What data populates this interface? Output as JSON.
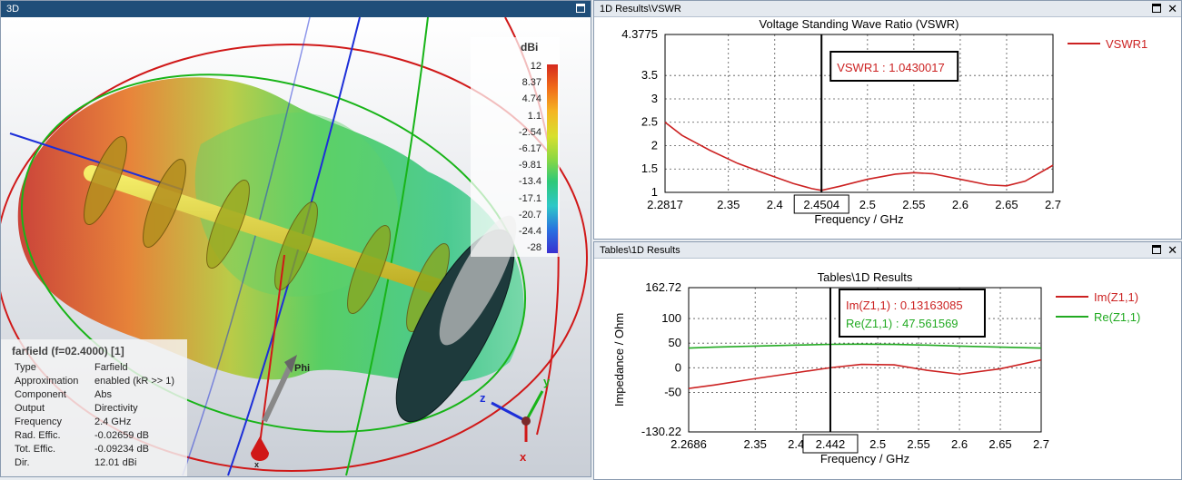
{
  "view3d": {
    "title": "3D",
    "colorbar": {
      "unit": "dBi",
      "labels": [
        "12",
        "8.37",
        "4.74",
        "1.1",
        "-2.54",
        "-6.17",
        "-9.81",
        "-13.4",
        "-17.1",
        "-20.7",
        "-24.4",
        "-28"
      ]
    },
    "info": {
      "title": "farfield (f=02.4000) [1]",
      "rows": [
        {
          "key": "Type",
          "value": "Farfield"
        },
        {
          "key": "Approximation",
          "value": "enabled (kR >> 1)"
        },
        {
          "key": "Component",
          "value": "Abs"
        },
        {
          "key": "Output",
          "value": "Directivity"
        },
        {
          "key": "Frequency",
          "value": "2.4 GHz"
        },
        {
          "key": "Rad. Effic.",
          "value": "-0.02659 dB"
        },
        {
          "key": "Tot. Effic.",
          "value": "-0.09234 dB"
        },
        {
          "key": "Dir.",
          "value": "12.01 dBi"
        }
      ]
    },
    "axis_labels": {
      "phi": "Phi",
      "x": "x",
      "y": "y",
      "z": "z"
    }
  },
  "vswr_panel": {
    "title": "1D Results\\VSWR",
    "chart_data": {
      "type": "line",
      "title": "Voltage Standing Wave Ratio (VSWR)",
      "xlabel": "Frequency / GHz",
      "ylabel": "",
      "xlim": [
        2.2817,
        2.7
      ],
      "ylim": [
        1,
        4.3775
      ],
      "xticks": [
        "2.2817",
        "2.35",
        "2.4",
        "2.4504",
        "2.5",
        "2.55",
        "2.6",
        "2.65",
        "2.7"
      ],
      "xtick_values": [
        2.2817,
        2.35,
        2.4,
        2.4504,
        2.5,
        2.55,
        2.6,
        2.65,
        2.7
      ],
      "yticks": [
        "1",
        "1.5",
        "2",
        "2.5",
        "3",
        "3.5",
        "4.3775"
      ],
      "ytick_values": [
        1,
        1.5,
        2,
        2.5,
        3,
        3.5,
        4.3775
      ],
      "grid": true,
      "legend_position": "top-right",
      "marker": {
        "x": 2.4504,
        "label": "VSWR1 : 1.0430017",
        "x_label": "2.4504"
      },
      "series": [
        {
          "name": "VSWR1",
          "color": "#cc2222",
          "x": [
            2.2817,
            2.3,
            2.33,
            2.36,
            2.39,
            2.42,
            2.44,
            2.4504,
            2.47,
            2.5,
            2.53,
            2.55,
            2.57,
            2.6,
            2.63,
            2.65,
            2.67,
            2.7
          ],
          "y": [
            2.5,
            2.22,
            1.9,
            1.62,
            1.4,
            1.19,
            1.08,
            1.043,
            1.13,
            1.28,
            1.39,
            1.42,
            1.4,
            1.28,
            1.16,
            1.14,
            1.24,
            1.58
          ]
        }
      ]
    }
  },
  "table_panel": {
    "title": "Tables\\1D Results",
    "chart_data": {
      "type": "line",
      "title": "Tables\\1D Results",
      "xlabel": "Frequency / GHz",
      "ylabel": "Impedance / Ohm",
      "xlim": [
        2.2686,
        2.7
      ],
      "ylim": [
        -130.22,
        162.72
      ],
      "xticks": [
        "2.2686",
        "2.35",
        "2.4",
        "2.442",
        "2.5",
        "2.55",
        "2.6",
        "2.65",
        "2.7"
      ],
      "xtick_values": [
        2.2686,
        2.35,
        2.4,
        2.442,
        2.5,
        2.55,
        2.6,
        2.65,
        2.7
      ],
      "yticks": [
        "-130.22",
        "-50",
        "0",
        "50",
        "100",
        "162.72"
      ],
      "ytick_values": [
        -130.22,
        -50,
        0,
        50,
        100,
        162.72
      ],
      "grid": true,
      "legend_position": "top-right",
      "marker": {
        "x": 2.442,
        "labels": [
          "Im(Z1,1) : 0.13163085",
          "Re(Z1,1) : 47.561569"
        ],
        "x_label": "2.442"
      },
      "series": [
        {
          "name": "Im(Z1,1)",
          "color": "#cc2222",
          "x": [
            2.2686,
            2.3,
            2.35,
            2.4,
            2.442,
            2.48,
            2.52,
            2.56,
            2.6,
            2.65,
            2.7
          ],
          "y": [
            -42,
            -35,
            -22,
            -10,
            0.13,
            7,
            6,
            -5,
            -13,
            -2,
            16
          ]
        },
        {
          "name": "Re(Z1,1)",
          "color": "#22aa22",
          "x": [
            2.2686,
            2.3,
            2.35,
            2.4,
            2.442,
            2.48,
            2.52,
            2.56,
            2.6,
            2.65,
            2.7
          ],
          "y": [
            40,
            42,
            44,
            46,
            47.56,
            48,
            47.5,
            46,
            44,
            42,
            40
          ]
        }
      ]
    }
  }
}
